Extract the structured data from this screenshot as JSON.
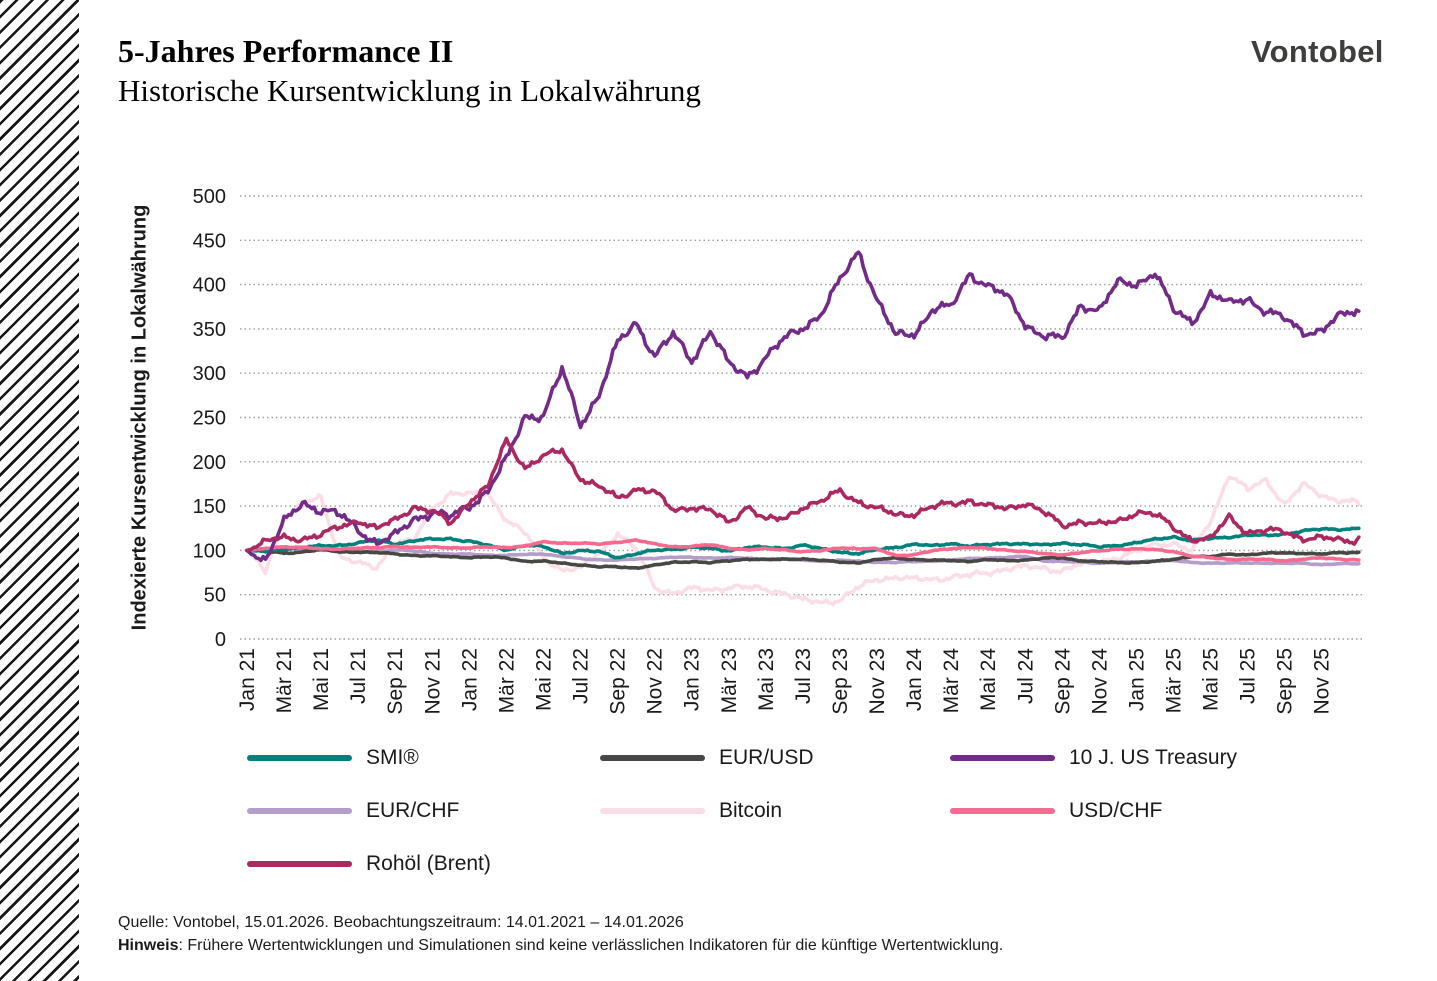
{
  "header": {
    "title": "5-Jahres Performance II",
    "subtitle": "Historische Kursentwicklung in Lokalwährung",
    "logo": "Vontobel"
  },
  "chart_data": {
    "type": "line",
    "title": "5-Jahres Performance II",
    "subtitle": "Historische Kursentwicklung in Lokalwährung",
    "xlabel": "",
    "ylabel": "Indexierte Kursentwicklung in Lokalwährung",
    "ylim": [
      0,
      500
    ],
    "y_ticks": [
      0,
      50,
      100,
      150,
      200,
      250,
      300,
      350,
      400,
      450,
      500
    ],
    "x_labels": [
      "Jan 21",
      "Mär 21",
      "Mai 21",
      "Jul 21",
      "Sep 21",
      "Nov 21",
      "Jan 22",
      "Mär 22",
      "Mai 22",
      "Jul 22",
      "Sep 22",
      "Nov 22",
      "Jan 23",
      "Mär 23",
      "Mai 23",
      "Jul 23",
      "Sep 23",
      "Nov 23",
      "Jan 24",
      "Mär 24",
      "Mai 24",
      "Jul 24",
      "Sep 24",
      "Nov 24",
      "Jan 25",
      "Mär 25",
      "Mai 25",
      "Jul 25",
      "Sep 25",
      "Nov 25"
    ],
    "grid": "horizontal-dotted",
    "legend_position": "bottom",
    "values_granularity": "monthly, Jan 2021 - Jan 2026, indexed to 100",
    "series": [
      {
        "name": "SMI®",
        "color": "#00827b",
        "volatility": 1.6,
        "values": [
          100,
          98,
          101,
          103,
          105,
          107,
          109,
          111,
          107,
          110,
          112,
          114,
          111,
          106,
          101,
          105,
          103,
          97,
          100,
          99,
          93,
          96,
          99,
          101,
          103,
          102,
          101,
          104,
          103,
          102,
          105,
          101,
          99,
          97,
          101,
          104,
          106,
          104,
          108,
          105,
          107,
          109,
          107,
          105,
          108,
          106,
          104,
          107,
          109,
          112,
          115,
          110,
          113,
          116,
          118,
          117,
          119,
          121,
          123,
          124,
          125
        ]
      },
      {
        "name": "EUR/USD",
        "color": "#474744",
        "volatility": 0.9,
        "values": [
          100,
          99,
          97,
          99,
          101,
          98,
          98,
          97,
          96,
          95,
          94,
          93,
          92,
          92,
          91,
          88,
          88,
          86,
          84,
          81,
          81,
          80,
          83,
          87,
          88,
          86,
          88,
          90,
          89,
          90,
          91,
          89,
          87,
          86,
          89,
          91,
          90,
          89,
          89,
          88,
          89,
          88,
          89,
          91,
          92,
          89,
          87,
          86,
          86,
          87,
          90,
          94,
          93,
          96,
          95,
          96,
          97,
          97,
          96,
          98,
          98
        ]
      },
      {
        "name": "10 J. US Treasury",
        "color": "#722c87",
        "volatility": 7,
        "values": [
          100,
          92,
          130,
          152,
          142,
          138,
          127,
          112,
          118,
          136,
          140,
          133,
          150,
          170,
          205,
          255,
          252,
          300,
          240,
          275,
          335,
          362,
          322,
          342,
          312,
          345,
          308,
          300,
          322,
          340,
          352,
          364,
          400,
          438,
          385,
          345,
          348,
          372,
          370,
          410,
          398,
          388,
          360,
          345,
          336,
          375,
          368,
          400,
          404,
          418,
          372,
          358,
          386,
          374,
          385,
          372,
          364,
          350,
          347,
          360,
          370
        ]
      },
      {
        "name": "EUR/CHF",
        "color": "#b49dc9",
        "volatility": 0.7,
        "values": [
          100,
          100,
          102,
          102,
          101,
          101,
          99,
          99,
          100,
          99,
          97,
          96,
          96,
          95,
          94,
          95,
          96,
          93,
          91,
          90,
          89,
          90,
          91,
          92,
          92,
          92,
          92,
          91,
          90,
          90,
          89,
          88,
          89,
          88,
          87,
          86,
          87,
          88,
          89,
          91,
          92,
          92,
          93,
          88,
          87,
          87,
          86,
          87,
          87,
          88,
          88,
          86,
          86,
          86,
          86,
          86,
          85,
          85,
          84,
          85,
          85
        ]
      },
      {
        "name": "Bitcoin",
        "color": "#fbdde7",
        "volatility": 4.5,
        "values": [
          100,
          78,
          140,
          152,
          160,
          92,
          82,
          80,
          112,
          112,
          150,
          165,
          160,
          162,
          135,
          120,
          95,
          80,
          78,
          95,
          118,
          100,
          60,
          55,
          57,
          55,
          57,
          55,
          56,
          54,
          45,
          43,
          44,
          55,
          66,
          70,
          68,
          70,
          72,
          70,
          73,
          78,
          80,
          82,
          80,
          85,
          88,
          90,
          95,
          108,
          110,
          100,
          135,
          185,
          165,
          178,
          152,
          175,
          165,
          158,
          152
        ]
      },
      {
        "name": "USD/CHF",
        "color": "#f56b90",
        "volatility": 0.9,
        "values": [
          100,
          102,
          104,
          103,
          101,
          102,
          103,
          103,
          105,
          103,
          103,
          103,
          103,
          104,
          104,
          105,
          109,
          108,
          108,
          107,
          110,
          112,
          107,
          104,
          104,
          106,
          103,
          101,
          102,
          101,
          98,
          99,
          103,
          102,
          102,
          95,
          95,
          99,
          102,
          103,
          102,
          101,
          99,
          96,
          95,
          97,
          99,
          102,
          102,
          101,
          99,
          93,
          91,
          90,
          90,
          90,
          89,
          90,
          91,
          90,
          89
        ]
      },
      {
        "name": "Rohöl (Brent)",
        "color": "#ab2960",
        "volatility": 5,
        "values": [
          100,
          107,
          114,
          116,
          119,
          128,
          134,
          121,
          132,
          150,
          145,
          133,
          158,
          170,
          222,
          192,
          205,
          215,
          185,
          172,
          158,
          168,
          163,
          145,
          152,
          147,
          132,
          150,
          131,
          134,
          150,
          156,
          170,
          157,
          145,
          138,
          140,
          148,
          155,
          160,
          150,
          146,
          152,
          140,
          128,
          136,
          131,
          134,
          143,
          137,
          124,
          113,
          114,
          141,
          122,
          120,
          119,
          112,
          113,
          114,
          115
        ]
      }
    ]
  },
  "footer": {
    "source": "Quelle: Vontobel,  15.01.2026. Beobachtungszeitraum: 14.01.2021 – 14.01.2026",
    "note_label": "Hinweis",
    "note_text": ":  Frühere Wertentwicklungen und Simulationen sind keine verlässlichen Indikatoren für die künftige Wertentwicklung."
  }
}
